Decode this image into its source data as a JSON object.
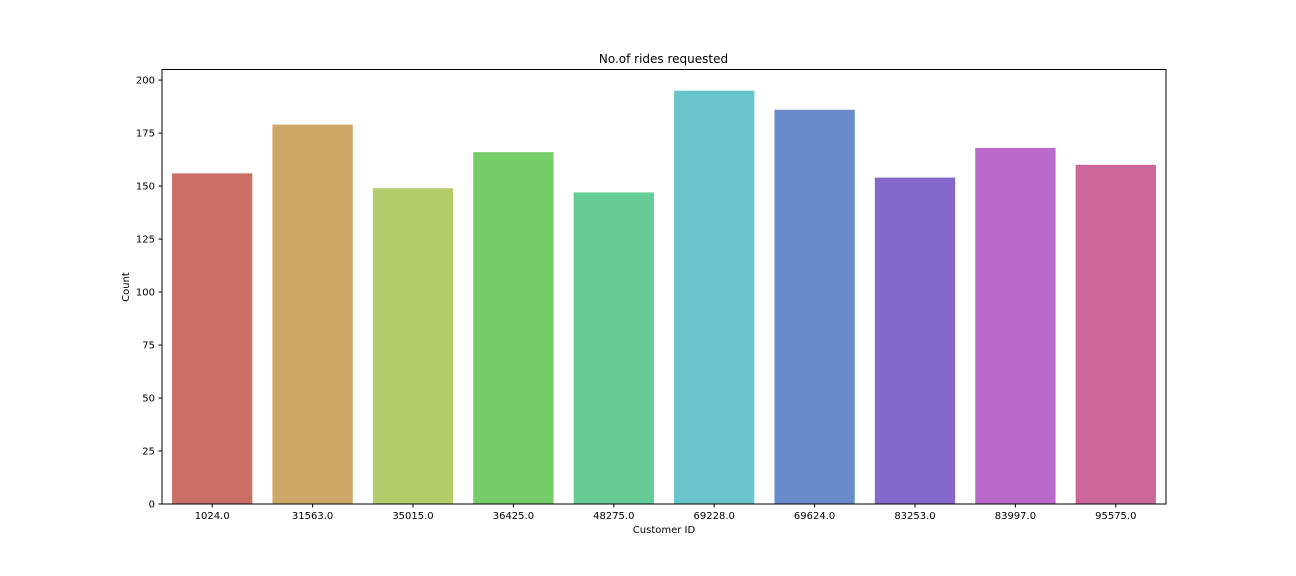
{
  "chart_data": {
    "type": "bar",
    "title": "No.of rides requested",
    "xlabel": "Customer ID",
    "ylabel": "Count",
    "categories": [
      "1024.0",
      "31563.0",
      "35015.0",
      "36425.0",
      "48275.0",
      "69228.0",
      "69624.0",
      "83253.0",
      "83997.0",
      "95575.0"
    ],
    "values": [
      156,
      179,
      149,
      166,
      147,
      195,
      186,
      154,
      168,
      160
    ],
    "colors": [
      "#c96f66",
      "#cca766",
      "#b3cb68",
      "#75cc68",
      "#66cc95",
      "#68c5cb",
      "#688bcb",
      "#8468cb",
      "#b968cb",
      "#cb6799"
    ],
    "ylim": [
      0,
      205
    ],
    "yticks": [
      0,
      25,
      50,
      75,
      100,
      125,
      150,
      175,
      200
    ],
    "grid": false,
    "legend": "none"
  }
}
